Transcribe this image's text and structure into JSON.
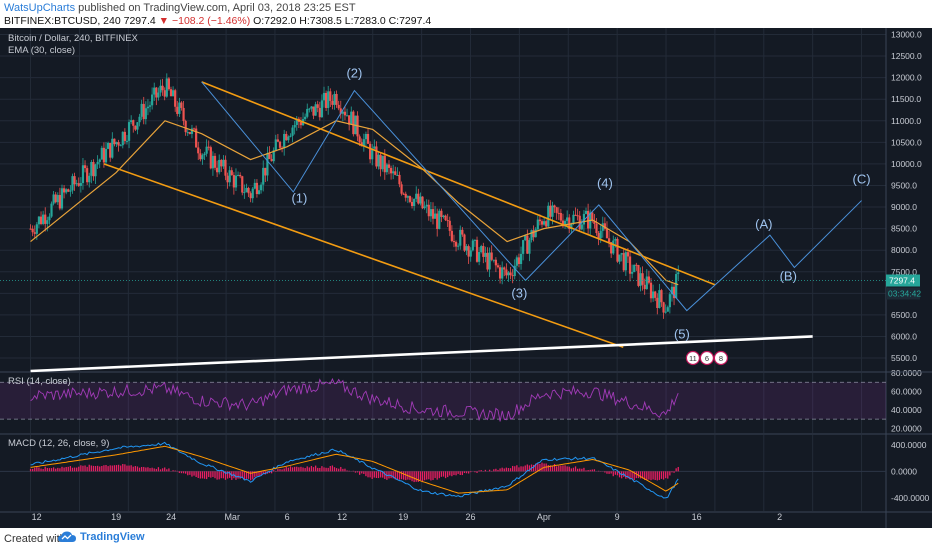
{
  "header": {
    "user": "WatsUpCharts",
    "published": " published on TradingView.com, April 03, 2018 23:25 EST",
    "symbol": "BITFINEX:BTCUSD, 240",
    "last": "7297.4",
    "change": "▼ −108.2 (−1.46%)",
    "ohlc": "O:7292.0 H:7308.5 L:7283.0 C:7297.4"
  },
  "footer": {
    "created": "Created with",
    "brand": "TradingView"
  },
  "colors": {
    "background": "#141a24",
    "up": "#26a69a",
    "down": "#ef5350",
    "ema": "#e8a33a",
    "channel": "#f39c12",
    "wave": "#4a90d9",
    "trend": "#ffffff",
    "rsi": "#a23bb8",
    "macd_line": "#2196f3",
    "signal_line": "#ff9800",
    "hist": "#e91e63"
  },
  "chart_data": [
    {
      "type": "candlestick",
      "title": "Bitcoin / Dollar, 240, BITFINEX",
      "indicator": "EMA (30, close)",
      "ylim": [
        5200,
        13150
      ],
      "y_ticks": [
        "13000.0",
        "12500.0",
        "12000.0",
        "11500.0",
        "11000.0",
        "10500.0",
        "10000.0",
        "9500.0",
        "9000.0",
        "8500.0",
        "8000.0",
        "7500.0",
        "7000.0",
        "6500.0",
        "6000.0",
        "5500.0"
      ],
      "last_price": "7297.4",
      "countdown": "03:34:42",
      "x": [
        0,
        7,
        11,
        14,
        18,
        21,
        25,
        28,
        32,
        35,
        39,
        42,
        46,
        49,
        52,
        53
      ],
      "close": [
        8500,
        10500,
        11800,
        10300,
        9300,
        10800,
        11600,
        10200,
        9000,
        8300,
        7400,
        8800,
        8700,
        7600,
        6700,
        7300
      ],
      "ema": [
        8200,
        9800,
        11000,
        10700,
        10100,
        10400,
        11000,
        10800,
        9900,
        9100,
        8200,
        8500,
        8700,
        8200,
        7300,
        7200
      ],
      "channel_upper": [
        [
          14,
          11900
        ],
        [
          56,
          7200
        ]
      ],
      "channel_lower": [
        [
          6,
          10000
        ],
        [
          48.5,
          5750
        ]
      ],
      "trendline": [
        [
          0,
          5200
        ],
        [
          64,
          6000
        ]
      ],
      "waves": [
        {
          "label": "(1)",
          "x": 22,
          "y": 9100
        },
        {
          "label": "(2)",
          "x": 26.5,
          "y": 12000
        },
        {
          "label": "(3)",
          "x": 40,
          "y": 6900
        },
        {
          "label": "(4)",
          "x": 47,
          "y": 9450
        },
        {
          "label": "(5)",
          "x": 53.3,
          "y": 5950
        },
        {
          "label": "(A)",
          "x": 60,
          "y": 8500
        },
        {
          "label": "(B)",
          "x": 62,
          "y": 7300
        },
        {
          "label": "(C)",
          "x": 68,
          "y": 9550
        }
      ],
      "wave_path": [
        [
          14,
          11900
        ],
        [
          21.5,
          9350
        ],
        [
          26.5,
          11700
        ],
        [
          40.5,
          7300
        ],
        [
          46.5,
          9050
        ],
        [
          53.7,
          6600
        ],
        [
          60.5,
          8350
        ],
        [
          62.5,
          7600
        ],
        [
          68,
          9150
        ]
      ],
      "badges": [
        "11",
        "6",
        "8"
      ]
    },
    {
      "type": "line",
      "title": "RSI (14, close)",
      "ylim": [
        15,
        80
      ],
      "y_ticks": [
        "80.0000",
        "60.0000",
        "40.0000",
        "20.0000"
      ],
      "bands": [
        70,
        30
      ],
      "values": [
        55,
        60,
        63,
        50,
        45,
        62,
        68,
        52,
        40,
        38,
        34,
        58,
        60,
        48,
        35,
        59
      ]
    },
    {
      "type": "line",
      "title": "MACD (12, 26, close, 9)",
      "ylim": [
        -600,
        550
      ],
      "y_ticks": [
        "400.0000",
        "0.0000",
        "-400.0000"
      ],
      "macd": [
        100,
        350,
        420,
        120,
        -150,
        150,
        330,
        50,
        -300,
        -380,
        -220,
        180,
        200,
        -100,
        -420,
        -120
      ],
      "signal": [
        60,
        250,
        380,
        220,
        -30,
        80,
        260,
        150,
        -150,
        -330,
        -280,
        60,
        180,
        20,
        -300,
        -180
      ],
      "x_ticks": [
        "12",
        "19",
        "24",
        "Mar",
        "6",
        "12",
        "19",
        "26",
        "Apr",
        "9",
        "16",
        "2"
      ]
    }
  ]
}
